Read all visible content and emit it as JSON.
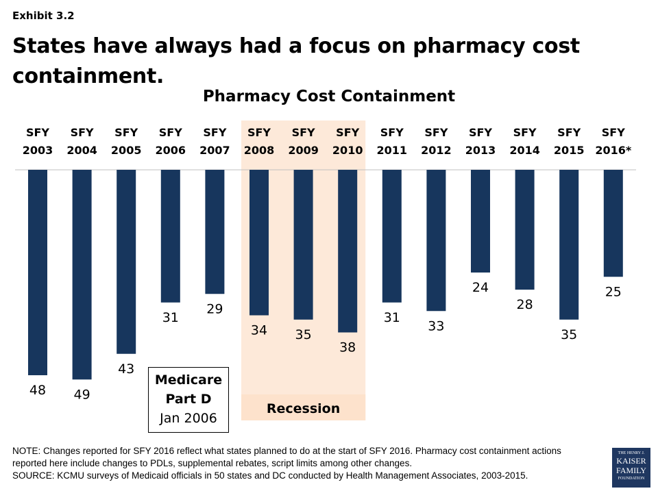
{
  "exhibit": "Exhibit 3.2",
  "headline": "States have always had a focus on pharmacy cost containment.",
  "chart_data": {
    "type": "bar",
    "title": "Pharmacy Cost Containment",
    "categories": [
      "SFY 2003",
      "SFY 2004",
      "SFY 2005",
      "SFY 2006",
      "SFY 2007",
      "SFY 2008",
      "SFY 2009",
      "SFY 2010",
      "SFY 2011",
      "SFY 2012",
      "SFY 2013",
      "SFY 2014",
      "SFY 2015",
      "SFY 2016*"
    ],
    "values": [
      48,
      49,
      43,
      31,
      29,
      34,
      35,
      38,
      31,
      33,
      24,
      28,
      35,
      25
    ],
    "orientation": "downward from top axis",
    "bar_color": "#17365d",
    "highlight": {
      "label": "Recession",
      "categories": [
        "SFY 2008",
        "SFY 2009",
        "SFY 2010"
      ],
      "color": "#fde9d9"
    },
    "annotation": {
      "line1": "Medicare",
      "line2": "Part D",
      "line3": "Jan 2006"
    }
  },
  "note": "NOTE: Changes reported for SFY 2016 reflect what states planned to do at the start of SFY 2016. Pharmacy cost containment actions reported here include changes to PDLs, supplemental rebates, script limits among other changes.",
  "source": "SOURCE: KCMU surveys of Medicaid officials in 50 states and DC conducted by Health Management Associates, 2003-2015.",
  "logo": {
    "line1": "THE HENRY J.",
    "line2": "KAISER",
    "line3": "FAMILY",
    "line4": "FOUNDATION"
  }
}
